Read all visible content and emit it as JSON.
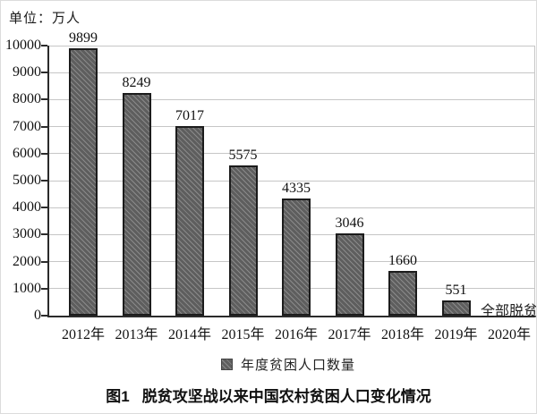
{
  "chart_data": {
    "type": "bar",
    "title": "图1 脱贫攻坚战以来中国农村贫困人口变化情况",
    "unit_label": "单位：万人",
    "categories": [
      "2012年",
      "2013年",
      "2014年",
      "2015年",
      "2016年",
      "2017年",
      "2018年",
      "2019年",
      "2020年"
    ],
    "values": [
      9899,
      8249,
      7017,
      5575,
      4335,
      3046,
      1660,
      551,
      0
    ],
    "yticks": [
      0,
      1000,
      2000,
      3000,
      4000,
      5000,
      6000,
      7000,
      8000,
      9000,
      10000
    ],
    "ylim": [
      0,
      10000
    ],
    "grid": true,
    "legend": [
      "年度贫困人口数量"
    ],
    "legend_position": "bottom",
    "annotations": [
      {
        "category": "2020年",
        "text": "全部脱贫"
      }
    ]
  },
  "caption": {
    "figure_label": "图1",
    "title": "脱贫攻坚战以来中国农村贫困人口变化情况"
  },
  "colors": {
    "bar_fill": "#5e5e5e",
    "bar_hatch": "#8a8a8a",
    "bar_border": "#1c1c1c",
    "gridline": "#c6c6c6",
    "axis": "#2b2b2b",
    "text": "#1a1a1a"
  }
}
